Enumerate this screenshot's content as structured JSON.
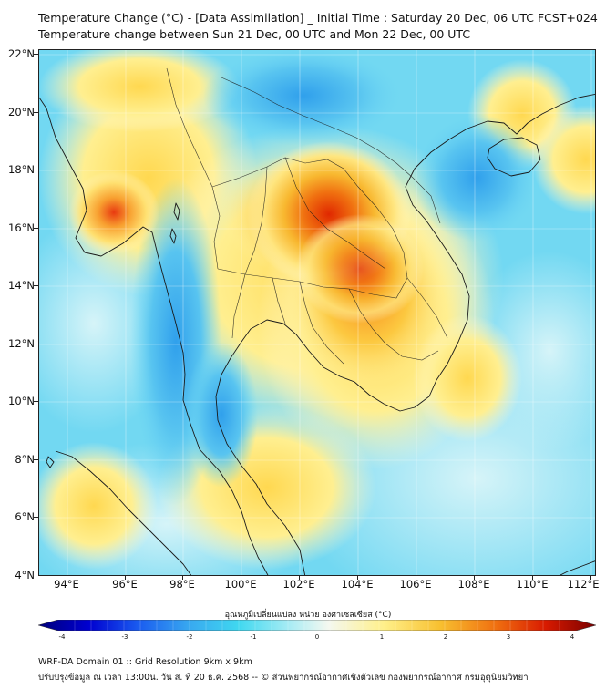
{
  "title_line1": "Temperature Change (°C) - [Data Assimilation] _ Initial Time : Saturday 20 Dec, 06 UTC FCST+024",
  "title_line2": "Temperature change between Sun 21 Dec, 00 UTC and Mon 22 Dec, 00 UTC",
  "lat_labels": [
    "22°N",
    "20°N",
    "18°N",
    "16°N",
    "14°N",
    "12°N",
    "10°N",
    "8°N",
    "6°N",
    "4°N"
  ],
  "lon_labels": [
    "94°E",
    "96°E",
    "98°E",
    "100°E",
    "102°E",
    "104°E",
    "106°E",
    "108°E",
    "110°E",
    "112°E"
  ],
  "colorbar": {
    "title": "อุณหภูมิเปลี่ยนแปลง หน่วย องศาเซลเซียส (°C)",
    "tick_labels": [
      "-4",
      "-3",
      "-2",
      "-1",
      "0",
      "1",
      "2",
      "3",
      "4"
    ],
    "colors": [
      "#00007a",
      "#0000d0",
      "#1a5cf0",
      "#38a8f0",
      "#40d8f0",
      "#a8ecf4",
      "#f4f8f0",
      "#fff08a",
      "#f8c030",
      "#f07010",
      "#d81a00",
      "#780000"
    ]
  },
  "footer_line1": "WRF-DA Domain 01 :: Grid Resolution 9km x 9km",
  "footer_line2": "ปรับปรุงข้อมูล ณ เวลา 13:00น. วัน ส. ที่ 20 ธ.ค. 2568 -- © ส่วนพยากรณ์อากาศเชิงตัวเลข กองพยากรณ์อากาศ กรมอุตุนิยมวิทยา"
}
